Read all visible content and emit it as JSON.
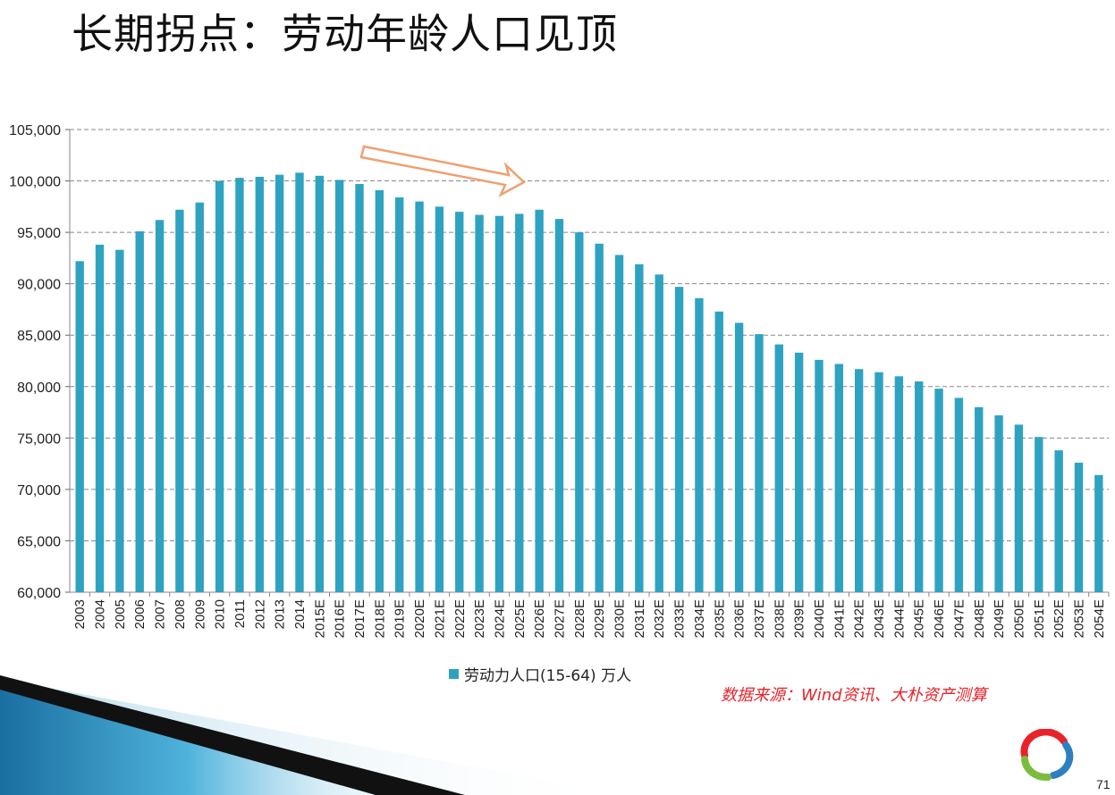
{
  "slide": {
    "title": "长期拐点：劳动年龄人口见顶",
    "source": "数据来源：Wind资讯、大朴资产测算",
    "page_number": "71"
  },
  "colors": {
    "bar": "#2ea3c1",
    "arrow": "#f0a070",
    "source_text": "#e8232a",
    "gridline": "#888888"
  },
  "chart_data": {
    "type": "bar",
    "title": "",
    "xlabel": "",
    "ylabel": "",
    "ylim": [
      60000,
      105000
    ],
    "yticks": [
      60000,
      65000,
      70000,
      75000,
      80000,
      85000,
      90000,
      95000,
      100000,
      105000
    ],
    "ytick_labels": [
      "60,000",
      "65,000",
      "70,000",
      "75,000",
      "80,000",
      "85,000",
      "90,000",
      "95,000",
      "100,000",
      "105,000"
    ],
    "grid": true,
    "legend_position": "bottom",
    "categories": [
      "2003",
      "2004",
      "2005",
      "2006",
      "2007",
      "2008",
      "2009",
      "2010",
      "2011",
      "2012",
      "2013",
      "2014",
      "2015E",
      "2016E",
      "2017E",
      "2018E",
      "2019E",
      "2020E",
      "2021E",
      "2022E",
      "2023E",
      "2024E",
      "2025E",
      "2026E",
      "2027E",
      "2028E",
      "2029E",
      "2030E",
      "2031E",
      "2032E",
      "2033E",
      "2034E",
      "2035E",
      "2036E",
      "2037E",
      "2038E",
      "2039E",
      "2040E",
      "2041E",
      "2042E",
      "2043E",
      "2044E",
      "2045E",
      "2046E",
      "2047E",
      "2048E",
      "2049E",
      "2050E",
      "2051E",
      "2052E",
      "2053E",
      "2054E"
    ],
    "series": [
      {
        "name": "劳动力人口(15-64) 万人",
        "values": [
          92200,
          93800,
          93300,
          95100,
          96200,
          97200,
          97900,
          100000,
          100300,
          100400,
          100600,
          100800,
          100500,
          100100,
          99700,
          99100,
          98400,
          98000,
          97500,
          97000,
          96700,
          96600,
          96800,
          97200,
          96300,
          95000,
          93900,
          92800,
          91900,
          90900,
          89700,
          88600,
          87300,
          86200,
          85100,
          84100,
          83300,
          82600,
          82200,
          81700,
          81400,
          81000,
          80500,
          79800,
          78900,
          78000,
          77200,
          76300,
          75100,
          73800,
          72600,
          71400
        ]
      }
    ],
    "annotation": "downward trend arrow near peak"
  }
}
